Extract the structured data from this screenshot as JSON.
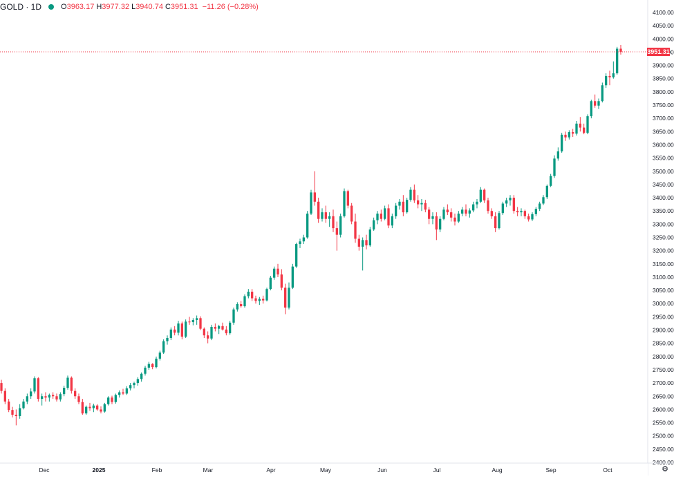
{
  "legend": {
    "symbol": "GOLD · 1D",
    "open_key": "O",
    "open": "3963.17",
    "high_key": "H",
    "high": "3977.32",
    "low_key": "L",
    "low": "3940.74",
    "close_key": "C",
    "close": "3951.31",
    "change": "−11.26 (−0.28%)"
  },
  "last_price_label": "3951.31",
  "colors": {
    "up": "#089981",
    "down": "#f23645",
    "price_line": "#f23645",
    "axis_text": "#131722",
    "status_dot": "#089981"
  },
  "chart_data": {
    "type": "candlestick",
    "symbol": "GOLD",
    "interval": "1D",
    "y_axis_ticks": [
      "4100.00",
      "4050.00",
      "4000.00",
      "3950.00",
      "3900.00",
      "3850.00",
      "3800.00",
      "3750.00",
      "3700.00",
      "3650.00",
      "3600.00",
      "3550.00",
      "3500.00",
      "3450.00",
      "3400.00",
      "3350.00",
      "3300.00",
      "3250.00",
      "3200.00",
      "3150.00",
      "3100.00",
      "3050.00",
      "3000.00",
      "2950.00",
      "2900.00",
      "2850.00",
      "2800.00",
      "2750.00",
      "2700.00",
      "2650.00",
      "2600.00",
      "2550.00",
      "2500.00",
      "2450.00",
      "2400.00"
    ],
    "x_axis_ticks": [
      "Dec",
      "2025",
      "Feb",
      "Mar",
      "Apr",
      "May",
      "Jun",
      "Jul",
      "Aug",
      "Sep",
      "Oct"
    ],
    "ylim": [
      2390,
      4110
    ],
    "last_price": 3951.31,
    "candles": [
      [
        2700,
        2712,
        2660,
        2670
      ],
      [
        2670,
        2680,
        2620,
        2630
      ],
      [
        2630,
        2640,
        2590,
        2598
      ],
      [
        2598,
        2610,
        2570,
        2580
      ],
      [
        2580,
        2600,
        2540,
        2575
      ],
      [
        2575,
        2620,
        2565,
        2605
      ],
      [
        2605,
        2640,
        2600,
        2630
      ],
      [
        2630,
        2660,
        2620,
        2650
      ],
      [
        2650,
        2680,
        2640,
        2668
      ],
      [
        2668,
        2725,
        2660,
        2718
      ],
      [
        2718,
        2722,
        2630,
        2640
      ],
      [
        2640,
        2660,
        2615,
        2650
      ],
      [
        2650,
        2665,
        2630,
        2645
      ],
      [
        2645,
        2660,
        2630,
        2655
      ],
      [
        2655,
        2665,
        2640,
        2650
      ],
      [
        2650,
        2660,
        2630,
        2638
      ],
      [
        2638,
        2665,
        2630,
        2658
      ],
      [
        2658,
        2690,
        2650,
        2682
      ],
      [
        2682,
        2728,
        2675,
        2720
      ],
      [
        2720,
        2725,
        2660,
        2670
      ],
      [
        2670,
        2680,
        2640,
        2650
      ],
      [
        2650,
        2660,
        2620,
        2628
      ],
      [
        2628,
        2640,
        2580,
        2585
      ],
      [
        2585,
        2615,
        2580,
        2610
      ],
      [
        2610,
        2625,
        2595,
        2605
      ],
      [
        2605,
        2622,
        2590,
        2615
      ],
      [
        2615,
        2620,
        2595,
        2600
      ],
      [
        2600,
        2612,
        2585,
        2592
      ],
      [
        2592,
        2625,
        2588,
        2620
      ],
      [
        2620,
        2650,
        2615,
        2645
      ],
      [
        2645,
        2652,
        2620,
        2628
      ],
      [
        2628,
        2660,
        2622,
        2655
      ],
      [
        2655,
        2672,
        2645,
        2665
      ],
      [
        2665,
        2678,
        2655,
        2660
      ],
      [
        2660,
        2688,
        2655,
        2680
      ],
      [
        2680,
        2700,
        2672,
        2692
      ],
      [
        2692,
        2705,
        2680,
        2700
      ],
      [
        2700,
        2722,
        2690,
        2715
      ],
      [
        2715,
        2740,
        2705,
        2735
      ],
      [
        2735,
        2765,
        2728,
        2758
      ],
      [
        2758,
        2780,
        2750,
        2772
      ],
      [
        2772,
        2775,
        2752,
        2760
      ],
      [
        2760,
        2800,
        2755,
        2792
      ],
      [
        2792,
        2822,
        2785,
        2815
      ],
      [
        2815,
        2865,
        2810,
        2858
      ],
      [
        2858,
        2880,
        2845,
        2870
      ],
      [
        2870,
        2910,
        2862,
        2902
      ],
      [
        2902,
        2915,
        2880,
        2890
      ],
      [
        2890,
        2935,
        2880,
        2925
      ],
      [
        2925,
        2932,
        2865,
        2875
      ],
      [
        2875,
        2940,
        2870,
        2932
      ],
      [
        2932,
        2950,
        2920,
        2930
      ],
      [
        2930,
        2945,
        2918,
        2938
      ],
      [
        2938,
        2955,
        2920,
        2945
      ],
      [
        2945,
        2952,
        2900,
        2905
      ],
      [
        2905,
        2910,
        2870,
        2880
      ],
      [
        2880,
        2895,
        2850,
        2868
      ],
      [
        2868,
        2920,
        2862,
        2912
      ],
      [
        2912,
        2925,
        2895,
        2905
      ],
      [
        2905,
        2920,
        2885,
        2915
      ],
      [
        2915,
        2928,
        2898,
        2902
      ],
      [
        2902,
        2915,
        2880,
        2888
      ],
      [
        2888,
        2935,
        2882,
        2928
      ],
      [
        2928,
        2985,
        2920,
        2978
      ],
      [
        2978,
        3005,
        2970,
        2998
      ],
      [
        2998,
        3010,
        2985,
        2990
      ],
      [
        2990,
        3035,
        2985,
        3028
      ],
      [
        3028,
        3055,
        3020,
        3045
      ],
      [
        3045,
        3055,
        3010,
        3020
      ],
      [
        3020,
        3030,
        3000,
        3010
      ],
      [
        3010,
        3025,
        2995,
        3018
      ],
      [
        3018,
        3030,
        3000,
        3012
      ],
      [
        3012,
        3060,
        3008,
        3055
      ],
      [
        3055,
        3105,
        3050,
        3098
      ],
      [
        3098,
        3140,
        3090,
        3132
      ],
      [
        3132,
        3150,
        3100,
        3110
      ],
      [
        3110,
        3130,
        3050,
        3060
      ],
      [
        3060,
        3075,
        2960,
        2985
      ],
      [
        2985,
        3080,
        2978,
        3060
      ],
      [
        3060,
        3150,
        3055,
        3140
      ],
      [
        3140,
        3230,
        3135,
        3225
      ],
      [
        3225,
        3245,
        3210,
        3235
      ],
      [
        3235,
        3260,
        3225,
        3250
      ],
      [
        3250,
        3350,
        3245,
        3340
      ],
      [
        3340,
        3430,
        3335,
        3420
      ],
      [
        3420,
        3500,
        3370,
        3385
      ],
      [
        3385,
        3400,
        3305,
        3320
      ],
      [
        3320,
        3360,
        3310,
        3345
      ],
      [
        3345,
        3370,
        3305,
        3320
      ],
      [
        3320,
        3345,
        3290,
        3330
      ],
      [
        3330,
        3355,
        3270,
        3285
      ],
      [
        3285,
        3310,
        3200,
        3260
      ],
      [
        3260,
        3340,
        3250,
        3330
      ],
      [
        3330,
        3435,
        3325,
        3425
      ],
      [
        3425,
        3430,
        3360,
        3370
      ],
      [
        3370,
        3380,
        3300,
        3310
      ],
      [
        3310,
        3340,
        3230,
        3245
      ],
      [
        3245,
        3260,
        3200,
        3215
      ],
      [
        3215,
        3250,
        3125,
        3240
      ],
      [
        3240,
        3260,
        3205,
        3220
      ],
      [
        3220,
        3290,
        3215,
        3280
      ],
      [
        3280,
        3325,
        3275,
        3315
      ],
      [
        3315,
        3350,
        3300,
        3340
      ],
      [
        3340,
        3355,
        3310,
        3320
      ],
      [
        3320,
        3370,
        3315,
        3360
      ],
      [
        3360,
        3375,
        3285,
        3295
      ],
      [
        3295,
        3340,
        3285,
        3330
      ],
      [
        3330,
        3380,
        3320,
        3370
      ],
      [
        3370,
        3395,
        3355,
        3385
      ],
      [
        3385,
        3410,
        3330,
        3345
      ],
      [
        3345,
        3400,
        3340,
        3392
      ],
      [
        3392,
        3440,
        3385,
        3430
      ],
      [
        3430,
        3450,
        3380,
        3390
      ],
      [
        3390,
        3410,
        3360,
        3375
      ],
      [
        3375,
        3395,
        3350,
        3380
      ],
      [
        3380,
        3392,
        3345,
        3355
      ],
      [
        3355,
        3365,
        3300,
        3320
      ],
      [
        3320,
        3345,
        3300,
        3330
      ],
      [
        3330,
        3345,
        3240,
        3280
      ],
      [
        3280,
        3330,
        3270,
        3320
      ],
      [
        3320,
        3365,
        3315,
        3355
      ],
      [
        3355,
        3375,
        3335,
        3345
      ],
      [
        3345,
        3360,
        3310,
        3325
      ],
      [
        3325,
        3340,
        3295,
        3310
      ],
      [
        3310,
        3350,
        3305,
        3340
      ],
      [
        3340,
        3365,
        3330,
        3355
      ],
      [
        3355,
        3375,
        3330,
        3340
      ],
      [
        3340,
        3360,
        3325,
        3352
      ],
      [
        3352,
        3385,
        3345,
        3375
      ],
      [
        3375,
        3395,
        3360,
        3385
      ],
      [
        3385,
        3440,
        3380,
        3430
      ],
      [
        3430,
        3435,
        3380,
        3390
      ],
      [
        3390,
        3400,
        3340,
        3350
      ],
      [
        3350,
        3360,
        3320,
        3330
      ],
      [
        3330,
        3345,
        3270,
        3285
      ],
      [
        3285,
        3350,
        3280,
        3342
      ],
      [
        3342,
        3385,
        3335,
        3378
      ],
      [
        3378,
        3400,
        3365,
        3390
      ],
      [
        3390,
        3410,
        3370,
        3400
      ],
      [
        3400,
        3410,
        3340,
        3350
      ],
      [
        3350,
        3365,
        3330,
        3345
      ],
      [
        3345,
        3360,
        3330,
        3350
      ],
      [
        3350,
        3355,
        3320,
        3330
      ],
      [
        3330,
        3340,
        3310,
        3318
      ],
      [
        3318,
        3345,
        3312,
        3338
      ],
      [
        3338,
        3365,
        3330,
        3358
      ],
      [
        3358,
        3385,
        3350,
        3378
      ],
      [
        3378,
        3410,
        3372,
        3402
      ],
      [
        3402,
        3450,
        3395,
        3445
      ],
      [
        3445,
        3490,
        3440,
        3482
      ],
      [
        3482,
        3560,
        3475,
        3548
      ],
      [
        3548,
        3590,
        3540,
        3575
      ],
      [
        3575,
        3645,
        3570,
        3638
      ],
      [
        3638,
        3650,
        3615,
        3628
      ],
      [
        3628,
        3655,
        3620,
        3648
      ],
      [
        3648,
        3660,
        3630,
        3642
      ],
      [
        3642,
        3690,
        3635,
        3680
      ],
      [
        3680,
        3705,
        3650,
        3665
      ],
      [
        3665,
        3680,
        3640,
        3645
      ],
      [
        3645,
        3715,
        3640,
        3708
      ],
      [
        3708,
        3770,
        3700,
        3765
      ],
      [
        3765,
        3790,
        3740,
        3748
      ],
      [
        3748,
        3775,
        3735,
        3765
      ],
      [
        3765,
        3835,
        3760,
        3825
      ],
      [
        3825,
        3870,
        3815,
        3860
      ],
      [
        3860,
        3880,
        3825,
        3855
      ],
      [
        3855,
        3915,
        3850,
        3870
      ],
      [
        3870,
        3970,
        3865,
        3963
      ],
      [
        3963,
        3977.32,
        3940.74,
        3951.31
      ]
    ]
  }
}
